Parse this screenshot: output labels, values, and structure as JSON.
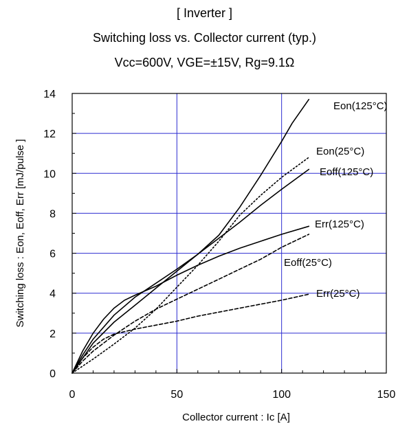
{
  "chart_data": {
    "type": "line",
    "title": "[ Inverter ]",
    "subtitle": "Switching loss  vs.  Collector current  (typ.)",
    "conditions": "Vcc=600V, VGE=±15V, Rg=9.1Ω",
    "xlabel": "Collector current : Ic [A]",
    "ylabel": "Switching loss  : Eon, Eoff, Err  [mJ/pulse ]",
    "xlim": [
      0,
      150
    ],
    "ylim": [
      0,
      14
    ],
    "x_ticks": [
      0,
      50,
      100,
      150
    ],
    "y_ticks": [
      0,
      2,
      4,
      6,
      8,
      10,
      12,
      14
    ],
    "grid": true,
    "series": [
      {
        "name": "Eon(125°C)",
        "style": "solid",
        "points": [
          [
            0,
            0
          ],
          [
            5,
            0.75
          ],
          [
            10,
            1.5
          ],
          [
            20,
            2.55
          ],
          [
            30,
            3.4
          ],
          [
            40,
            4.25
          ],
          [
            50,
            5.1
          ],
          [
            60,
            5.95
          ],
          [
            70,
            6.9
          ],
          [
            80,
            8.3
          ],
          [
            90,
            9.9
          ],
          [
            100,
            11.6
          ],
          [
            105,
            12.5
          ],
          [
            113,
            13.7
          ]
        ]
      },
      {
        "name": "Eon(25°C)",
        "style": "dotted",
        "points": [
          [
            0,
            0
          ],
          [
            10,
            0.7
          ],
          [
            20,
            1.45
          ],
          [
            30,
            2.25
          ],
          [
            40,
            3.2
          ],
          [
            50,
            4.3
          ],
          [
            60,
            5.4
          ],
          [
            70,
            6.6
          ],
          [
            80,
            7.9
          ],
          [
            90,
            8.9
          ],
          [
            100,
            9.8
          ],
          [
            113,
            10.8
          ]
        ]
      },
      {
        "name": "Eoff(125°C)",
        "style": "solid",
        "points": [
          [
            0,
            0
          ],
          [
            5,
            0.9
          ],
          [
            10,
            1.7
          ],
          [
            20,
            2.9
          ],
          [
            30,
            3.8
          ],
          [
            40,
            4.5
          ],
          [
            50,
            5.2
          ],
          [
            60,
            5.95
          ],
          [
            70,
            6.75
          ],
          [
            80,
            7.55
          ],
          [
            90,
            8.4
          ],
          [
            100,
            9.2
          ],
          [
            113,
            10.2
          ]
        ]
      },
      {
        "name": "Err(125°C)",
        "style": "solid",
        "points": [
          [
            0,
            0
          ],
          [
            5,
            1.1
          ],
          [
            10,
            2.0
          ],
          [
            15,
            2.7
          ],
          [
            20,
            3.25
          ],
          [
            25,
            3.65
          ],
          [
            30,
            3.9
          ],
          [
            40,
            4.35
          ],
          [
            50,
            4.9
          ],
          [
            60,
            5.4
          ],
          [
            70,
            5.85
          ],
          [
            80,
            6.25
          ],
          [
            90,
            6.6
          ],
          [
            100,
            6.95
          ],
          [
            113,
            7.35
          ]
        ]
      },
      {
        "name": "Eoff(25°C)",
        "style": "dashed",
        "points": [
          [
            0,
            0
          ],
          [
            5,
            0.6
          ],
          [
            10,
            1.1
          ],
          [
            20,
            1.9
          ],
          [
            30,
            2.6
          ],
          [
            40,
            3.2
          ],
          [
            50,
            3.7
          ],
          [
            60,
            4.2
          ],
          [
            70,
            4.7
          ],
          [
            80,
            5.2
          ],
          [
            90,
            5.7
          ],
          [
            100,
            6.3
          ],
          [
            113,
            6.95
          ]
        ]
      },
      {
        "name": "Err(25°C)",
        "style": "dashed",
        "points": [
          [
            0,
            0
          ],
          [
            5,
            0.75
          ],
          [
            10,
            1.3
          ],
          [
            15,
            1.7
          ],
          [
            20,
            1.95
          ],
          [
            30,
            2.2
          ],
          [
            40,
            2.4
          ],
          [
            50,
            2.6
          ],
          [
            60,
            2.85
          ],
          [
            70,
            3.05
          ],
          [
            80,
            3.25
          ],
          [
            90,
            3.45
          ],
          [
            100,
            3.65
          ],
          [
            113,
            3.95
          ]
        ]
      }
    ]
  }
}
